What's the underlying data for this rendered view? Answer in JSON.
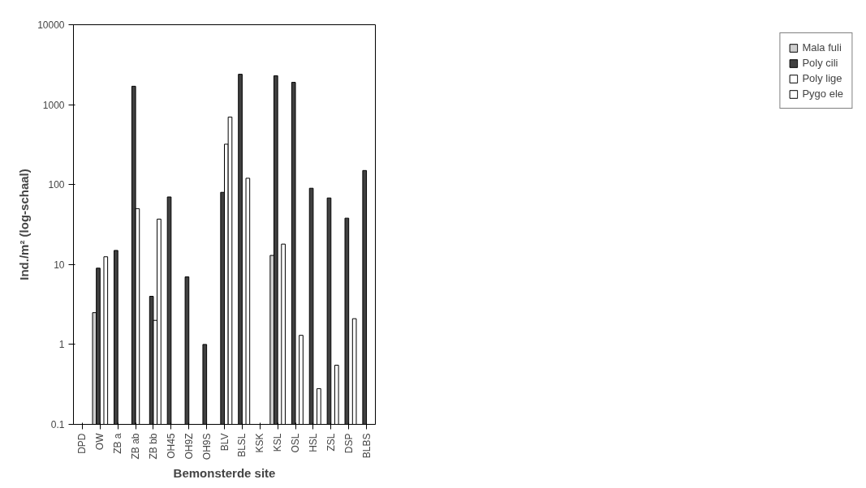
{
  "chart_data": {
    "type": "bar",
    "xlabel": "Bemonsterde site",
    "ylabel": "Ind./m² (log-schaal)",
    "categories": [
      "DPD",
      "OW",
      "ZB a",
      "ZB ab",
      "ZB bb",
      "OH45",
      "OH9Z",
      "OH9S",
      "BLV",
      "BLSL",
      "KSK",
      "KSL",
      "OSL",
      "HSL",
      "ZSL",
      "DSP",
      "BLBS"
    ],
    "series": [
      {
        "name": "Mala fuli",
        "color": "#cfcfcf",
        "values": [
          null,
          2.5,
          null,
          null,
          null,
          null,
          null,
          null,
          null,
          null,
          null,
          13,
          null,
          null,
          null,
          null,
          null
        ]
      },
      {
        "name": "Poly cili",
        "color": "#404040",
        "values": [
          null,
          9,
          15,
          1700,
          4,
          70,
          7,
          1,
          80,
          2400,
          null,
          2300,
          1900,
          90,
          68,
          38,
          150
        ]
      },
      {
        "name": "Poly lige",
        "color": "#ffffff",
        "values": [
          null,
          null,
          null,
          50,
          2,
          null,
          null,
          null,
          320,
          null,
          null,
          null,
          null,
          null,
          null,
          null,
          null
        ]
      },
      {
        "name": "Pygo ele",
        "color": "#ffffff",
        "values": [
          null,
          12.5,
          null,
          null,
          37,
          null,
          null,
          null,
          700,
          120,
          null,
          18,
          1.3,
          0.28,
          0.55,
          2.1,
          null
        ]
      }
    ],
    "log": "y",
    "ylim": [
      0.1,
      10000
    ],
    "yticks": [
      0.1,
      1,
      10,
      100,
      1000,
      10000
    ],
    "grid": false,
    "legend": "right"
  }
}
